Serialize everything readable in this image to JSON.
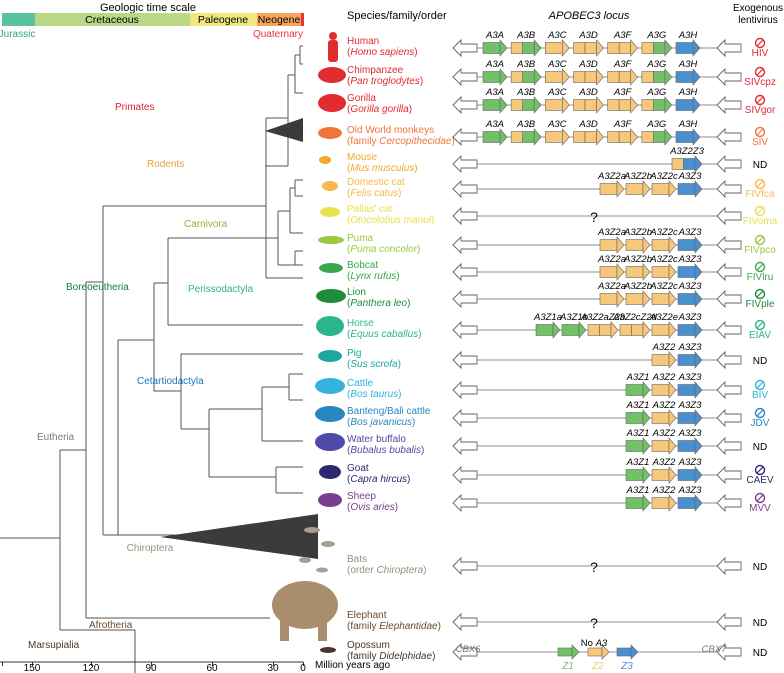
{
  "header": {
    "timescale_title": "Geologic time scale",
    "species_header": "Species/family/order",
    "locus_header": "APOBEC3 locus",
    "lentivirus_header_line1": "Exogenous",
    "lentivirus_header_line2": "lentivirus"
  },
  "time_scale": {
    "periods": [
      {
        "name": "Cretaceous",
        "color": "#b9d987"
      },
      {
        "name": "Paleogene",
        "color": "#f1e781"
      },
      {
        "name": "Neogene",
        "color": "#f6a45e"
      }
    ],
    "jurassic": {
      "label": "Jurassic",
      "color": "#59c3a0"
    },
    "quaternary": {
      "label": "Quaternary",
      "color": "#e2373b"
    }
  },
  "axis": {
    "ticks": [
      "150",
      "120",
      "90",
      "60",
      "30",
      "0"
    ],
    "label": "Million years ago"
  },
  "clades": [
    {
      "label": "Primates",
      "color": "#d7262d"
    },
    {
      "label": "Rodents",
      "color": "#e8a23b"
    },
    {
      "label": "Carnivora",
      "color": "#8ab833"
    },
    {
      "label": "Perissodactyla",
      "color": "#2cb585"
    },
    {
      "label": "Cetartiodactyla",
      "color": "#1c73b7"
    },
    {
      "label": "Boreoeutheria",
      "color": "#157a3d"
    },
    {
      "label": "Eutheria",
      "color": "#7a7a7a"
    },
    {
      "label": "Chiroptera",
      "color": "#9a8f7e"
    },
    {
      "label": "Afrotheria",
      "color": "#6b4a2b"
    },
    {
      "label": "Marsupialia",
      "color": "#4b3426"
    }
  ],
  "species": [
    {
      "name": "Human",
      "latin": "Homo sapiens",
      "latin_note": "",
      "color": "#e02b2f",
      "virus": "HIV"
    },
    {
      "name": "Chimpanzee",
      "latin": "Pan troglodytes",
      "latin_note": "",
      "color": "#e02b2f",
      "virus": "SIVcpz"
    },
    {
      "name": "Gorilla",
      "latin": "Gorilla gorilla",
      "latin_note": "",
      "color": "#e02b2f",
      "virus": "SIVgor"
    },
    {
      "name": "Old World monkeys",
      "latin": "Cercopithecidae",
      "latin_note": "family ",
      "color": "#f0753a",
      "virus": "SIV"
    },
    {
      "name": "Mouse",
      "latin": "Mus musculus",
      "latin_note": "",
      "color": "#f0a830",
      "virus": "ND"
    },
    {
      "name": "Domestic cat",
      "latin": "Felis catus",
      "latin_note": "",
      "color": "#f7b84a",
      "virus": "FIVfca"
    },
    {
      "name": "Pallas' cat",
      "latin": "Otocolobus manul",
      "latin_note": "",
      "color": "#e8e04d",
      "virus": "FIVoma"
    },
    {
      "name": "Puma",
      "latin": "Puma concolor",
      "latin_note": "",
      "color": "#9cc93b",
      "virus": "FIVpco"
    },
    {
      "name": "Bobcat",
      "latin": "Lynx rufus",
      "latin_note": "",
      "color": "#3aa84a",
      "virus": "FIVlru"
    },
    {
      "name": "Lion",
      "latin": "Panthera leo",
      "latin_note": "",
      "color": "#208c3c",
      "virus": "FIVple"
    },
    {
      "name": "Horse",
      "latin": "Equus caballus",
      "latin_note": "",
      "color": "#2bb48e",
      "virus": "EIAV"
    },
    {
      "name": "Pig",
      "latin": "Sus scrofa",
      "latin_note": "",
      "color": "#1da79e",
      "virus": "ND"
    },
    {
      "name": "Cattle",
      "latin": "Bos taurus",
      "latin_note": "",
      "color": "#33b4dd",
      "virus": "BIV"
    },
    {
      "name": "Banteng/Bali cattle",
      "latin": "Bos javanicus",
      "latin_note": "",
      "color": "#2a86c3",
      "virus": "JDV"
    },
    {
      "name": "Water buffalo",
      "latin": "Bubalus bubalis",
      "latin_note": "",
      "color": "#4f4aa8",
      "virus": "ND"
    },
    {
      "name": "Goat",
      "latin": "Capra hircus",
      "latin_note": "",
      "color": "#2e2870",
      "virus": "CAEV"
    },
    {
      "name": "Sheep",
      "latin": "Ovis aries",
      "latin_note": "",
      "color": "#7c3c8f",
      "virus": "MVV"
    },
    {
      "name": "Bats",
      "latin": "Chiroptera",
      "latin_note": "order ",
      "color": "#9a8f7e",
      "virus": "ND"
    },
    {
      "name": "Elephant",
      "latin": "Elephantidae",
      "latin_note": "family ",
      "color": "#6b4a2b",
      "virus": "ND"
    },
    {
      "name": "Opossum",
      "latin": "Didelphidae",
      "latin_note": "family ",
      "color": "#4b3426",
      "virus": "ND"
    }
  ],
  "loci": [
    {
      "genes": [
        {
          "label": "A3A",
          "type": "Z1"
        },
        {
          "label": "A3B",
          "type": "Z2Z1"
        },
        {
          "label": "A3C",
          "type": "Z2"
        },
        {
          "label": "A3D",
          "type": "Z2Z2"
        },
        {
          "label": "A3F",
          "type": "Z2Z2"
        },
        {
          "label": "A3G",
          "type": "Z2Z1"
        },
        {
          "label": "A3H",
          "type": "Z3"
        }
      ]
    },
    {
      "genes": [
        {
          "label": "A3A",
          "type": "Z1"
        },
        {
          "label": "A3B",
          "type": "Z2Z1"
        },
        {
          "label": "A3C",
          "type": "Z2"
        },
        {
          "label": "A3D",
          "type": "Z2Z2"
        },
        {
          "label": "A3F",
          "type": "Z2Z2"
        },
        {
          "label": "A3G",
          "type": "Z2Z1"
        },
        {
          "label": "A3H",
          "type": "Z3"
        }
      ]
    },
    {
      "genes": [
        {
          "label": "A3A",
          "type": "Z1"
        },
        {
          "label": "A3B",
          "type": "Z2Z1"
        },
        {
          "label": "A3C",
          "type": "Z2"
        },
        {
          "label": "A3D",
          "type": "Z2Z2"
        },
        {
          "label": "A3F",
          "type": "Z2Z2"
        },
        {
          "label": "A3G",
          "type": "Z2Z1"
        },
        {
          "label": "A3H",
          "type": "Z3"
        }
      ]
    },
    {
      "genes": [
        {
          "label": "A3A",
          "type": "Z1"
        },
        {
          "label": "A3B",
          "type": "Z2Z1"
        },
        {
          "label": "A3C",
          "type": "Z2"
        },
        {
          "label": "A3D",
          "type": "Z2Z2"
        },
        {
          "label": "A3F",
          "type": "Z2Z2"
        },
        {
          "label": "A3G",
          "type": "Z2Z1"
        },
        {
          "label": "A3H",
          "type": "Z3"
        }
      ]
    },
    {
      "genes": [
        {
          "label": "A3Z2Z3",
          "type": "Z2Z3"
        }
      ]
    },
    {
      "genes": [
        {
          "label": "A3Z2a",
          "type": "Z2"
        },
        {
          "label": "A3Z2b",
          "type": "Z2"
        },
        {
          "label": "A3Z2c",
          "type": "Z2"
        },
        {
          "label": "A3Z3",
          "type": "Z3"
        }
      ]
    },
    {
      "unknown": "?"
    },
    {
      "genes": [
        {
          "label": "A3Z2a",
          "type": "Z2"
        },
        {
          "label": "A3Z2b",
          "type": "Z2"
        },
        {
          "label": "A3Z2c",
          "type": "Z2"
        },
        {
          "label": "A3Z3",
          "type": "Z3"
        }
      ]
    },
    {
      "genes": [
        {
          "label": "A3Z2a",
          "type": "Z2"
        },
        {
          "label": "A3Z2b",
          "type": "Z2"
        },
        {
          "label": "A3Z2c",
          "type": "Z2"
        },
        {
          "label": "A3Z3",
          "type": "Z3"
        }
      ]
    },
    {
      "genes": [
        {
          "label": "A3Z2a",
          "type": "Z2"
        },
        {
          "label": "A3Z2b",
          "type": "Z2"
        },
        {
          "label": "A3Z2c",
          "type": "Z2"
        },
        {
          "label": "A3Z3",
          "type": "Z3"
        }
      ]
    },
    {
      "genes": [
        {
          "label": "A3Z1a",
          "type": "Z1"
        },
        {
          "label": "A3Z1b",
          "type": "Z1"
        },
        {
          "label": "A3Z2aZ2b",
          "type": "Z2Z2"
        },
        {
          "label": "A3Z2cZ2d",
          "type": "Z2Z2"
        },
        {
          "label": "A3Z2e",
          "type": "Z2"
        },
        {
          "label": "A3Z3",
          "type": "Z3"
        }
      ]
    },
    {
      "genes": [
        {
          "label": "A3Z2",
          "type": "Z2"
        },
        {
          "label": "A3Z3",
          "type": "Z3"
        }
      ]
    },
    {
      "genes": [
        {
          "label": "A3Z1",
          "type": "Z1"
        },
        {
          "label": "A3Z2",
          "type": "Z2"
        },
        {
          "label": "A3Z3",
          "type": "Z3"
        }
      ]
    },
    {
      "genes": [
        {
          "label": "A3Z1",
          "type": "Z1"
        },
        {
          "label": "A3Z2",
          "type": "Z2"
        },
        {
          "label": "A3Z3",
          "type": "Z3"
        }
      ]
    },
    {
      "genes": [
        {
          "label": "A3Z1",
          "type": "Z1"
        },
        {
          "label": "A3Z2",
          "type": "Z2"
        },
        {
          "label": "A3Z3",
          "type": "Z3"
        }
      ]
    },
    {
      "genes": [
        {
          "label": "A3Z1",
          "type": "Z1"
        },
        {
          "label": "A3Z2",
          "type": "Z2"
        },
        {
          "label": "A3Z3",
          "type": "Z3"
        }
      ]
    },
    {
      "genes": [
        {
          "label": "A3Z1",
          "type": "Z1"
        },
        {
          "label": "A3Z2",
          "type": "Z2"
        },
        {
          "label": "A3Z3",
          "type": "Z3"
        }
      ]
    },
    {
      "unknown": "?"
    },
    {
      "unknown": "?"
    },
    {
      "note": "No A3"
    }
  ],
  "flanks": {
    "left": "CBX6",
    "right": "CBX7"
  },
  "legend": [
    {
      "label": "Z1",
      "color": "#72c167"
    },
    {
      "label": "Z2",
      "color": "#f7c87a"
    },
    {
      "label": "Z3",
      "color": "#4a8fd0"
    }
  ],
  "colors": {
    "z1": "#72c167",
    "z2": "#f7c87a",
    "z3": "#4a8fd0",
    "tree": "#555555",
    "line": "#9a9a9a"
  }
}
